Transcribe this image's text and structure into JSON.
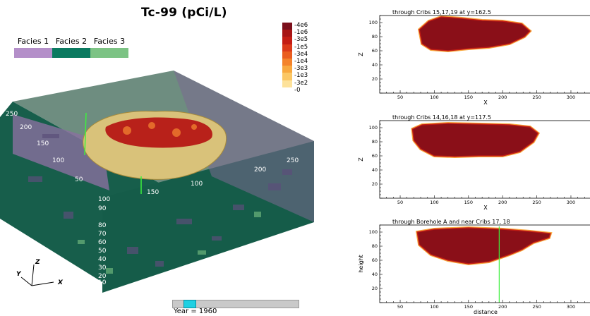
{
  "title": "Tc-99 (pCi/L)",
  "facies": [
    {
      "label": "Facies 1",
      "color": "#b48fc9"
    },
    {
      "label": "Facies 2",
      "color": "#0b7a60"
    },
    {
      "label": "Facies 3",
      "color": "#7cc384"
    }
  ],
  "colorbar": {
    "labels": [
      "-4e6",
      "-1e6",
      "-3e5",
      "-1e5",
      "-3e4",
      "-1e4",
      "-3e3",
      "-1e3",
      "-3e2",
      "-0"
    ],
    "colors": [
      "#7b0f1b",
      "#a81515",
      "#c41d14",
      "#db3a1a",
      "#ea5d1f",
      "#f4832b",
      "#f8a83f",
      "#fbc765",
      "#fde29b",
      "#ffffff"
    ]
  },
  "scene": {
    "axis_ticks_left": [
      "250",
      "200",
      "150",
      "100",
      "50"
    ],
    "axis_ticks_front_x": [
      "100",
      "150",
      "200",
      "250"
    ],
    "axis_ticks_z": [
      "100",
      "90",
      "80",
      "70",
      "60",
      "50",
      "40",
      "30",
      "20",
      "10",
      "0"
    ],
    "orientation": {
      "z": "Z",
      "y": "Y",
      "x": "X"
    }
  },
  "timeline": {
    "year_label": "Year = 1960",
    "progress": 0.1
  },
  "cross_sections": [
    {
      "title": "through Cribs 15,17,19 at y=162.5",
      "xlabel": "X",
      "ylabel": "Z",
      "xticks": [
        "50",
        "100",
        "150",
        "200",
        "250",
        "300"
      ],
      "yticks": [
        "100",
        "80",
        "60",
        "40",
        "20"
      ]
    },
    {
      "title": "through Cribs 14,16,18 at y=117.5",
      "xlabel": "X",
      "ylabel": "Z",
      "xticks": [
        "50",
        "100",
        "150",
        "200",
        "250",
        "300"
      ],
      "yticks": [
        "100",
        "80",
        "60",
        "40",
        "20"
      ]
    },
    {
      "title": "through Borehole A and near Cribs 17, 18",
      "xlabel": "distance",
      "ylabel": "height",
      "xticks": [
        "50",
        "100",
        "150",
        "200",
        "250",
        "300"
      ],
      "yticks": [
        "100",
        "80",
        "60",
        "40",
        "20"
      ]
    }
  ]
}
